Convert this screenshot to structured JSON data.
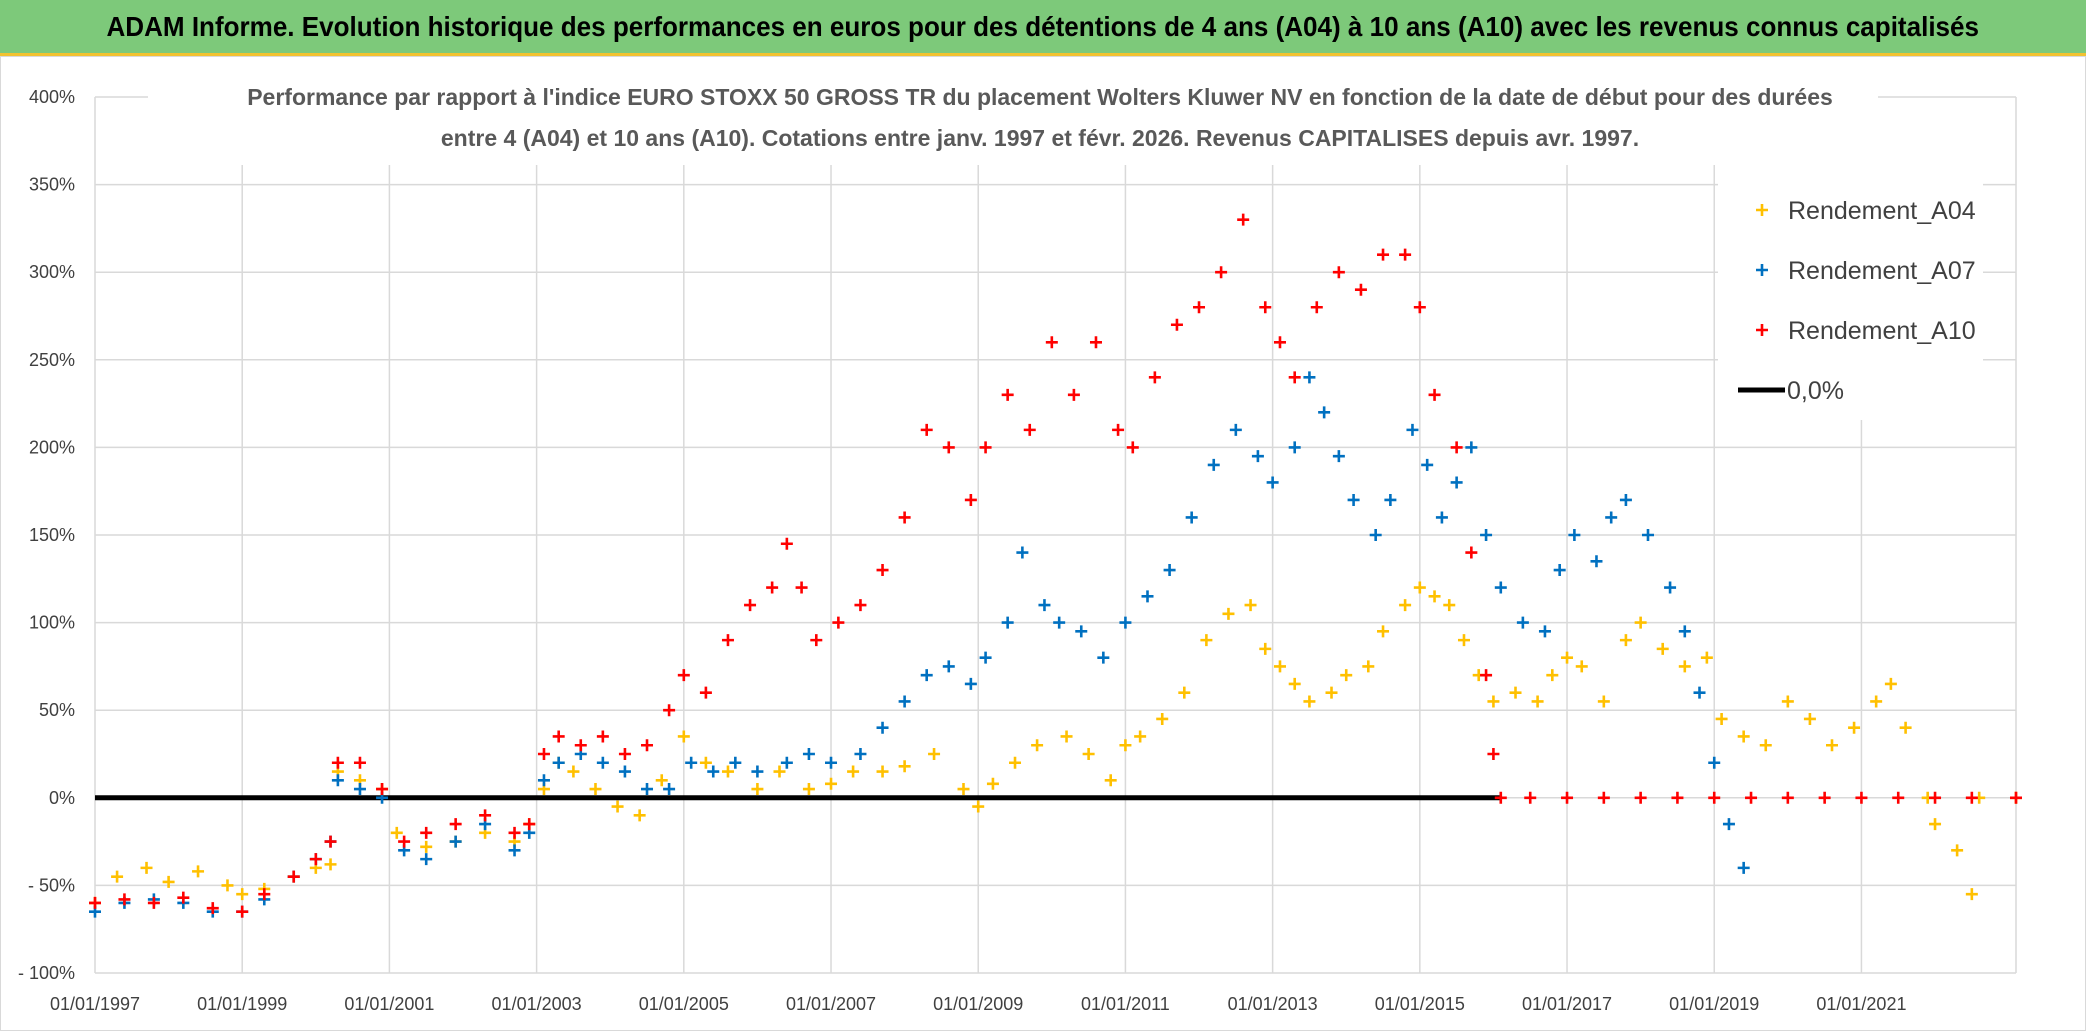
{
  "header": {
    "banner_title": "ADAM Informe. Evolution historique des performances en euros pour des détentions de 4 ans (A04) à 10 ans (A10) avec les revenus connus capitalisés"
  },
  "chart_data": {
    "type": "scatter",
    "title_line1": "Performance par rapport à l'indice EURO STOXX 50 GROSS TR  du placement Wolters Kluwer NV en fonction de la date de début pour des durées",
    "title_line2": "entre 4 (A04) et 10 ans (A10). Cotations entre janv. 1997 et févr. 2026. Revenus CAPITALISES depuis avr. 1997.",
    "xlabel": "",
    "ylabel": "",
    "x_range": [
      1997.0,
      2023.1
    ],
    "ylim": [
      -100,
      400
    ],
    "y_ticks": [
      {
        "value": -100,
        "label": "- 100%"
      },
      {
        "value": -50,
        "label": "- 50%"
      },
      {
        "value": 0,
        "label": "0%"
      },
      {
        "value": 50,
        "label": "50%"
      },
      {
        "value": 100,
        "label": "100%"
      },
      {
        "value": 150,
        "label": "150%"
      },
      {
        "value": 200,
        "label": "200%"
      },
      {
        "value": 250,
        "label": "250%"
      },
      {
        "value": 300,
        "label": "300%"
      },
      {
        "value": 350,
        "label": "350%"
      },
      {
        "value": 400,
        "label": "400%"
      }
    ],
    "x_ticks": [
      {
        "value": 1997,
        "label": "01/01/1997"
      },
      {
        "value": 1999,
        "label": "01/01/1999"
      },
      {
        "value": 2001,
        "label": "01/01/2001"
      },
      {
        "value": 2003,
        "label": "01/01/2003"
      },
      {
        "value": 2005,
        "label": "01/01/2005"
      },
      {
        "value": 2007,
        "label": "01/01/2007"
      },
      {
        "value": 2009,
        "label": "01/01/2009"
      },
      {
        "value": 2011,
        "label": "01/01/2011"
      },
      {
        "value": 2013,
        "label": "01/01/2013"
      },
      {
        "value": 2015,
        "label": "01/01/2015"
      },
      {
        "value": 2017,
        "label": "01/01/2017"
      },
      {
        "value": 2019,
        "label": "01/01/2019"
      },
      {
        "value": 2021,
        "label": "01/01/2021"
      }
    ],
    "grid": true,
    "legend_position": "top-right",
    "series": [
      {
        "name": "Rendement_A04",
        "color": "#ffc000",
        "marker": "+",
        "points": [
          [
            1997.0,
            -60
          ],
          [
            1997.3,
            -45
          ],
          [
            1997.7,
            -40
          ],
          [
            1998.0,
            -48
          ],
          [
            1998.4,
            -42
          ],
          [
            1998.8,
            -50
          ],
          [
            1999.0,
            -55
          ],
          [
            1999.3,
            -52
          ],
          [
            1999.7,
            -45
          ],
          [
            2000.0,
            -40
          ],
          [
            2000.2,
            -38
          ],
          [
            2000.3,
            15
          ],
          [
            2000.6,
            10
          ],
          [
            2000.9,
            5
          ],
          [
            2001.1,
            -20
          ],
          [
            2001.5,
            -28
          ],
          [
            2001.9,
            -25
          ],
          [
            2002.3,
            -20
          ],
          [
            2002.7,
            -25
          ],
          [
            2002.9,
            -15
          ],
          [
            2003.1,
            5
          ],
          [
            2003.3,
            20
          ],
          [
            2003.5,
            15
          ],
          [
            2003.8,
            5
          ],
          [
            2004.1,
            -5
          ],
          [
            2004.4,
            -10
          ],
          [
            2004.7,
            10
          ],
          [
            2005.0,
            35
          ],
          [
            2005.3,
            20
          ],
          [
            2005.6,
            15
          ],
          [
            2006.0,
            5
          ],
          [
            2006.3,
            15
          ],
          [
            2006.7,
            5
          ],
          [
            2007.0,
            8
          ],
          [
            2007.3,
            15
          ],
          [
            2007.7,
            15
          ],
          [
            2008.0,
            18
          ],
          [
            2008.4,
            25
          ],
          [
            2008.8,
            5
          ],
          [
            2009.0,
            -5
          ],
          [
            2009.2,
            8
          ],
          [
            2009.5,
            20
          ],
          [
            2009.8,
            30
          ],
          [
            2010.2,
            35
          ],
          [
            2010.5,
            25
          ],
          [
            2010.8,
            10
          ],
          [
            2011.0,
            30
          ],
          [
            2011.2,
            35
          ],
          [
            2011.5,
            45
          ],
          [
            2011.8,
            60
          ],
          [
            2012.1,
            90
          ],
          [
            2012.4,
            105
          ],
          [
            2012.7,
            110
          ],
          [
            2012.9,
            85
          ],
          [
            2013.1,
            75
          ],
          [
            2013.3,
            65
          ],
          [
            2013.5,
            55
          ],
          [
            2013.8,
            60
          ],
          [
            2014.0,
            70
          ],
          [
            2014.3,
            75
          ],
          [
            2014.5,
            95
          ],
          [
            2014.8,
            110
          ],
          [
            2015.0,
            120
          ],
          [
            2015.2,
            115
          ],
          [
            2015.4,
            110
          ],
          [
            2015.6,
            90
          ],
          [
            2015.8,
            70
          ],
          [
            2016.0,
            55
          ],
          [
            2016.3,
            60
          ],
          [
            2016.6,
            55
          ],
          [
            2016.8,
            70
          ],
          [
            2017.0,
            80
          ],
          [
            2017.2,
            75
          ],
          [
            2017.5,
            55
          ],
          [
            2017.8,
            90
          ],
          [
            2018.0,
            100
          ],
          [
            2018.3,
            85
          ],
          [
            2018.6,
            75
          ],
          [
            2018.9,
            80
          ],
          [
            2019.1,
            45
          ],
          [
            2019.4,
            35
          ],
          [
            2019.7,
            30
          ],
          [
            2020.0,
            55
          ],
          [
            2020.3,
            45
          ],
          [
            2020.6,
            30
          ],
          [
            2020.9,
            40
          ],
          [
            2021.2,
            55
          ],
          [
            2021.4,
            65
          ],
          [
            2021.6,
            40
          ],
          [
            2021.9,
            0
          ],
          [
            2022.0,
            -15
          ],
          [
            2022.3,
            -30
          ],
          [
            2022.5,
            -55
          ],
          [
            2022.6,
            0
          ],
          [
            2023.1,
            0
          ]
        ]
      },
      {
        "name": "Rendement_A07",
        "color": "#0070c0",
        "marker": "+",
        "points": [
          [
            1997.0,
            -65
          ],
          [
            1997.4,
            -60
          ],
          [
            1997.8,
            -58
          ],
          [
            1998.2,
            -60
          ],
          [
            1998.6,
            -65
          ],
          [
            1999.0,
            -65
          ],
          [
            1999.3,
            -58
          ],
          [
            1999.7,
            -45
          ],
          [
            2000.0,
            -35
          ],
          [
            2000.2,
            -25
          ],
          [
            2000.3,
            10
          ],
          [
            2000.6,
            5
          ],
          [
            2000.9,
            0
          ],
          [
            2001.2,
            -30
          ],
          [
            2001.5,
            -35
          ],
          [
            2001.9,
            -25
          ],
          [
            2002.3,
            -15
          ],
          [
            2002.7,
            -30
          ],
          [
            2002.9,
            -20
          ],
          [
            2003.1,
            10
          ],
          [
            2003.3,
            20
          ],
          [
            2003.6,
            25
          ],
          [
            2003.9,
            20
          ],
          [
            2004.2,
            15
          ],
          [
            2004.5,
            5
          ],
          [
            2004.8,
            5
          ],
          [
            2005.1,
            20
          ],
          [
            2005.4,
            15
          ],
          [
            2005.7,
            20
          ],
          [
            2006.0,
            15
          ],
          [
            2006.4,
            20
          ],
          [
            2006.7,
            25
          ],
          [
            2007.0,
            20
          ],
          [
            2007.4,
            25
          ],
          [
            2007.7,
            40
          ],
          [
            2008.0,
            55
          ],
          [
            2008.3,
            70
          ],
          [
            2008.6,
            75
          ],
          [
            2008.9,
            65
          ],
          [
            2009.1,
            80
          ],
          [
            2009.4,
            100
          ],
          [
            2009.6,
            140
          ],
          [
            2009.9,
            110
          ],
          [
            2010.1,
            100
          ],
          [
            2010.4,
            95
          ],
          [
            2010.7,
            80
          ],
          [
            2011.0,
            100
          ],
          [
            2011.3,
            115
          ],
          [
            2011.6,
            130
          ],
          [
            2011.9,
            160
          ],
          [
            2012.2,
            190
          ],
          [
            2012.5,
            210
          ],
          [
            2012.8,
            195
          ],
          [
            2013.0,
            180
          ],
          [
            2013.3,
            200
          ],
          [
            2013.5,
            240
          ],
          [
            2013.7,
            220
          ],
          [
            2013.9,
            195
          ],
          [
            2014.1,
            170
          ],
          [
            2014.4,
            150
          ],
          [
            2014.6,
            170
          ],
          [
            2014.9,
            210
          ],
          [
            2015.1,
            190
          ],
          [
            2015.3,
            160
          ],
          [
            2015.5,
            180
          ],
          [
            2015.7,
            200
          ],
          [
            2015.9,
            150
          ],
          [
            2016.1,
            120
          ],
          [
            2016.4,
            100
          ],
          [
            2016.7,
            95
          ],
          [
            2016.9,
            130
          ],
          [
            2017.1,
            150
          ],
          [
            2017.4,
            135
          ],
          [
            2017.6,
            160
          ],
          [
            2017.8,
            170
          ],
          [
            2018.1,
            150
          ],
          [
            2018.4,
            120
          ],
          [
            2018.6,
            95
          ],
          [
            2018.8,
            60
          ],
          [
            2019.0,
            20
          ],
          [
            2019.2,
            -15
          ],
          [
            2019.4,
            -40
          ]
        ]
      },
      {
        "name": "Rendement_A10",
        "color": "#ff0000",
        "marker": "+",
        "points": [
          [
            1997.0,
            -60
          ],
          [
            1997.4,
            -58
          ],
          [
            1997.8,
            -60
          ],
          [
            1998.2,
            -57
          ],
          [
            1998.6,
            -63
          ],
          [
            1999.0,
            -65
          ],
          [
            1999.3,
            -55
          ],
          [
            1999.7,
            -45
          ],
          [
            2000.0,
            -35
          ],
          [
            2000.2,
            -25
          ],
          [
            2000.3,
            20
          ],
          [
            2000.6,
            20
          ],
          [
            2000.9,
            5
          ],
          [
            2001.2,
            -25
          ],
          [
            2001.5,
            -20
          ],
          [
            2001.9,
            -15
          ],
          [
            2002.3,
            -10
          ],
          [
            2002.7,
            -20
          ],
          [
            2002.9,
            -15
          ],
          [
            2003.1,
            25
          ],
          [
            2003.3,
            35
          ],
          [
            2003.6,
            30
          ],
          [
            2003.9,
            35
          ],
          [
            2004.2,
            25
          ],
          [
            2004.5,
            30
          ],
          [
            2004.8,
            50
          ],
          [
            2005.0,
            70
          ],
          [
            2005.3,
            60
          ],
          [
            2005.6,
            90
          ],
          [
            2005.9,
            110
          ],
          [
            2006.2,
            120
          ],
          [
            2006.4,
            145
          ],
          [
            2006.6,
            120
          ],
          [
            2006.8,
            90
          ],
          [
            2007.1,
            100
          ],
          [
            2007.4,
            110
          ],
          [
            2007.7,
            130
          ],
          [
            2008.0,
            160
          ],
          [
            2008.3,
            210
          ],
          [
            2008.6,
            200
          ],
          [
            2008.9,
            170
          ],
          [
            2009.1,
            200
          ],
          [
            2009.4,
            230
          ],
          [
            2009.7,
            210
          ],
          [
            2010.0,
            260
          ],
          [
            2010.3,
            230
          ],
          [
            2010.6,
            260
          ],
          [
            2010.9,
            210
          ],
          [
            2011.1,
            200
          ],
          [
            2011.4,
            240
          ],
          [
            2011.7,
            270
          ],
          [
            2012.0,
            280
          ],
          [
            2012.3,
            300
          ],
          [
            2012.6,
            330
          ],
          [
            2012.9,
            280
          ],
          [
            2013.1,
            260
          ],
          [
            2013.3,
            240
          ],
          [
            2013.6,
            280
          ],
          [
            2013.9,
            300
          ],
          [
            2014.2,
            290
          ],
          [
            2014.5,
            310
          ],
          [
            2014.8,
            310
          ],
          [
            2015.0,
            280
          ],
          [
            2015.2,
            230
          ],
          [
            2015.5,
            200
          ],
          [
            2015.7,
            140
          ],
          [
            2015.9,
            70
          ],
          [
            2016.0,
            25
          ],
          [
            2016.1,
            0
          ],
          [
            2016.5,
            0
          ],
          [
            2017.0,
            0
          ],
          [
            2017.5,
            0
          ],
          [
            2018.0,
            0
          ],
          [
            2018.5,
            0
          ],
          [
            2019.0,
            0
          ],
          [
            2019.5,
            0
          ],
          [
            2020.0,
            0
          ],
          [
            2020.5,
            0
          ],
          [
            2021.0,
            0
          ],
          [
            2021.5,
            0
          ],
          [
            2022.0,
            0
          ],
          [
            2022.5,
            0
          ],
          [
            2023.1,
            0
          ]
        ]
      },
      {
        "name": "0,0%",
        "color": "#000000",
        "marker": "line",
        "points": [
          [
            1997.0,
            0
          ],
          [
            2016.1,
            0
          ]
        ]
      }
    ]
  }
}
